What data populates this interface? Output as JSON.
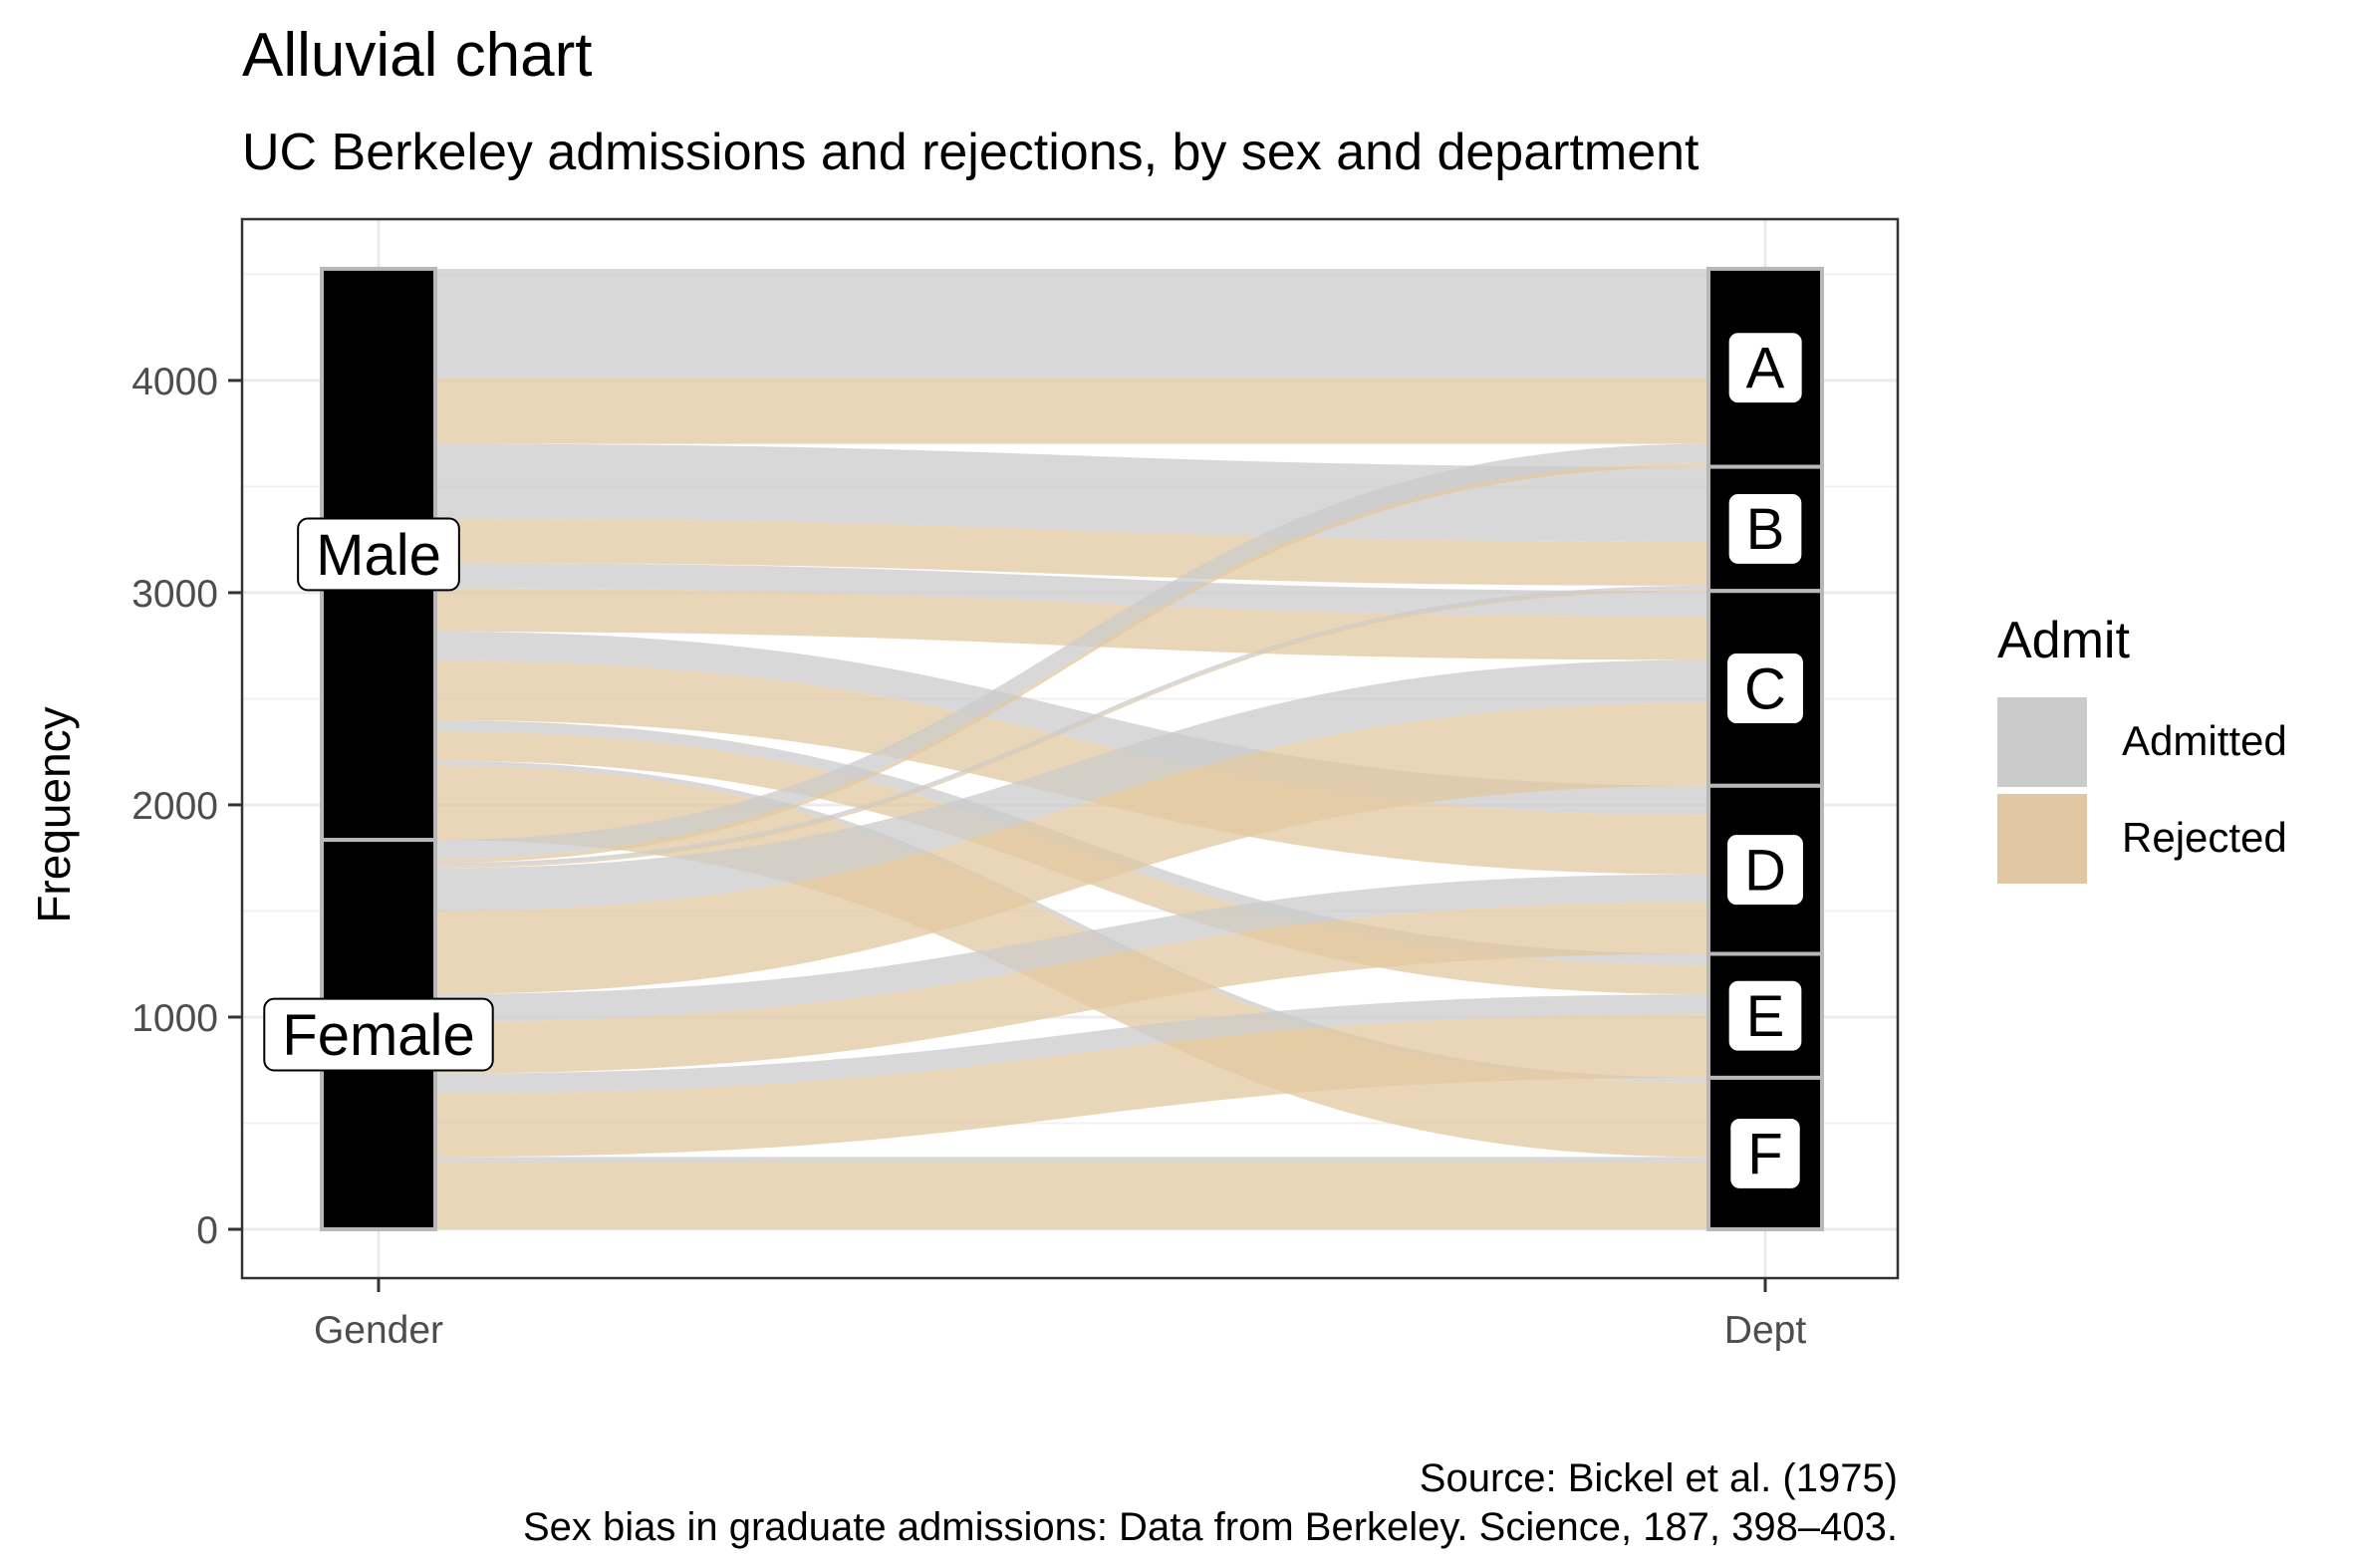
{
  "chart_data": {
    "type": "alluvial",
    "title": "Alluvial chart",
    "subtitle": "UC Berkeley admissions and rejections, by sex and department",
    "ylabel": "Frequency",
    "caption_line1": "Source: Bickel et al. (1975)",
    "caption_line2": "Sex bias in graduate admissions: Data from Berkeley. Science, 187, 398–403.",
    "axes": [
      "Gender",
      "Dept"
    ],
    "yticks": [
      0,
      1000,
      2000,
      3000,
      4000
    ],
    "ylim": [
      -230,
      4760
    ],
    "grid": true,
    "legend": {
      "title": "Admit",
      "placement": "right",
      "entries": [
        {
          "name": "Admitted",
          "color": "#cbcbcb"
        },
        {
          "name": "Rejected",
          "color": "#e2c8a2"
        }
      ]
    },
    "strata": {
      "Gender": [
        {
          "name": "Male",
          "value": 2691
        },
        {
          "name": "Female",
          "value": 1835
        }
      ],
      "Dept": [
        {
          "name": "A",
          "value": 933
        },
        {
          "name": "B",
          "value": 585
        },
        {
          "name": "C",
          "value": 918
        },
        {
          "name": "D",
          "value": 792
        },
        {
          "name": "E",
          "value": 584
        },
        {
          "name": "F",
          "value": 714
        }
      ]
    },
    "flows": [
      {
        "admit": "Admitted",
        "gender": "Male",
        "dept": "A",
        "value": 512
      },
      {
        "admit": "Rejected",
        "gender": "Male",
        "dept": "A",
        "value": 313
      },
      {
        "admit": "Admitted",
        "gender": "Male",
        "dept": "B",
        "value": 353
      },
      {
        "admit": "Rejected",
        "gender": "Male",
        "dept": "B",
        "value": 207
      },
      {
        "admit": "Admitted",
        "gender": "Male",
        "dept": "C",
        "value": 120
      },
      {
        "admit": "Rejected",
        "gender": "Male",
        "dept": "C",
        "value": 205
      },
      {
        "admit": "Admitted",
        "gender": "Male",
        "dept": "D",
        "value": 138
      },
      {
        "admit": "Rejected",
        "gender": "Male",
        "dept": "D",
        "value": 279
      },
      {
        "admit": "Admitted",
        "gender": "Male",
        "dept": "E",
        "value": 53
      },
      {
        "admit": "Rejected",
        "gender": "Male",
        "dept": "E",
        "value": 138
      },
      {
        "admit": "Admitted",
        "gender": "Male",
        "dept": "F",
        "value": 22
      },
      {
        "admit": "Rejected",
        "gender": "Male",
        "dept": "F",
        "value": 351
      },
      {
        "admit": "Admitted",
        "gender": "Female",
        "dept": "A",
        "value": 89
      },
      {
        "admit": "Rejected",
        "gender": "Female",
        "dept": "A",
        "value": 19
      },
      {
        "admit": "Admitted",
        "gender": "Female",
        "dept": "B",
        "value": 17
      },
      {
        "admit": "Rejected",
        "gender": "Female",
        "dept": "B",
        "value": 8
      },
      {
        "admit": "Admitted",
        "gender": "Female",
        "dept": "C",
        "value": 202
      },
      {
        "admit": "Rejected",
        "gender": "Female",
        "dept": "C",
        "value": 391
      },
      {
        "admit": "Admitted",
        "gender": "Female",
        "dept": "D",
        "value": 131
      },
      {
        "admit": "Rejected",
        "gender": "Female",
        "dept": "D",
        "value": 244
      },
      {
        "admit": "Admitted",
        "gender": "Female",
        "dept": "E",
        "value": 94
      },
      {
        "admit": "Rejected",
        "gender": "Female",
        "dept": "E",
        "value": 299
      },
      {
        "admit": "Admitted",
        "gender": "Female",
        "dept": "F",
        "value": 24
      },
      {
        "admit": "Rejected",
        "gender": "Female",
        "dept": "F",
        "value": 317
      }
    ]
  }
}
